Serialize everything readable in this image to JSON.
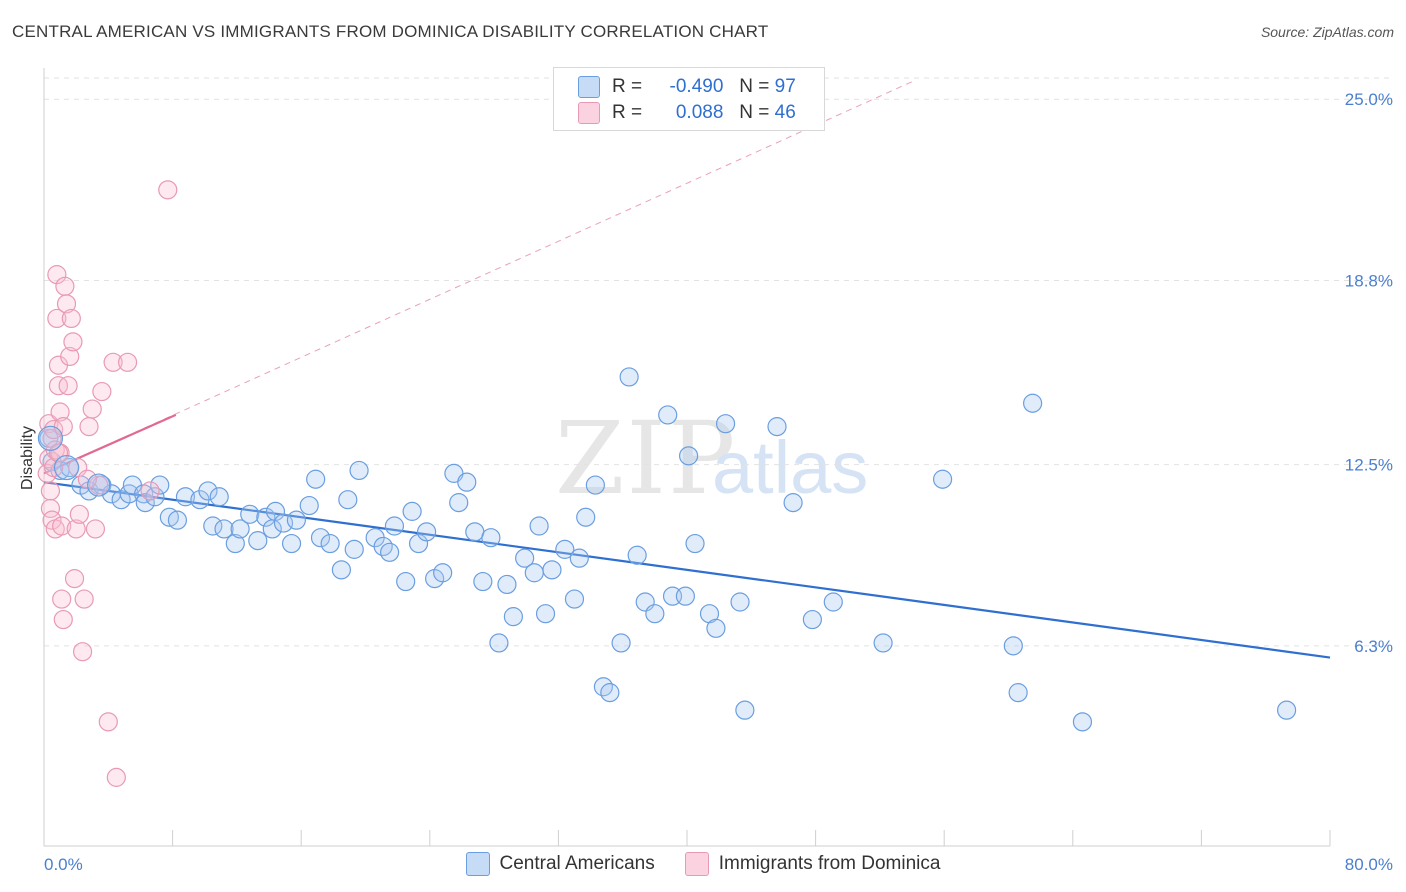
{
  "title": "CENTRAL AMERICAN VS IMMIGRANTS FROM DOMINICA DISABILITY CORRELATION CHART",
  "source": "Source: ZipAtlas.com",
  "watermark": {
    "zip": "ZIP",
    "atlas": "atlas"
  },
  "legend": {
    "rows": [
      {
        "r_label": "R =",
        "r_value": "-0.490",
        "n_label": "N =",
        "n_value": "97",
        "color": "#aac8f0",
        "border": "#6a9ee0"
      },
      {
        "r_label": "R =",
        "r_value": " 0.088",
        "n_label": "N =",
        "n_value": "46",
        "color": "#f8c0d2",
        "border": "#e89ab4"
      }
    ]
  },
  "bottom_legend": [
    {
      "label": "Central Americans",
      "color": "#aac8f0",
      "border": "#6a9ee0"
    },
    {
      "label": "Immigrants from Dominica",
      "color": "#f8c0d2",
      "border": "#e89ab4"
    }
  ],
  "chart_data": {
    "type": "scatter",
    "title": "CENTRAL AMERICAN VS IMMIGRANTS FROM DOMINICA DISABILITY CORRELATION CHART",
    "xlabel": "",
    "ylabel": "Disability",
    "xlim": [
      0,
      80
    ],
    "ylim": [
      0,
      26.0
    ],
    "x_tick_labels": [
      "0.0%",
      "80.0%"
    ],
    "y_ticks": [
      6.3,
      12.5,
      18.8,
      25.0
    ],
    "y_tick_labels": [
      "6.3%",
      "12.5%",
      "18.8%",
      "25.0%"
    ],
    "grid": true,
    "legend_position": "top-center",
    "series": [
      {
        "name": "Central Americans",
        "color": "#6a9ee0",
        "fill": "rgba(170,200,240,0.35)",
        "trend": {
          "x": [
            0,
            80
          ],
          "y": [
            11.9,
            5.9
          ],
          "color": "#2f6fd0"
        },
        "points": [
          [
            0.3,
            13.4
          ],
          [
            0.5,
            12.6
          ],
          [
            1.0,
            12.3
          ],
          [
            1.6,
            12.4
          ],
          [
            2.3,
            11.8
          ],
          [
            2.8,
            11.6
          ],
          [
            3.6,
            11.8
          ],
          [
            4.2,
            11.5
          ],
          [
            4.8,
            11.3
          ],
          [
            5.3,
            11.5
          ],
          [
            5.5,
            11.8
          ],
          [
            6.2,
            11.5
          ],
          [
            6.3,
            11.2
          ],
          [
            6.9,
            11.4
          ],
          [
            7.2,
            11.8
          ],
          [
            7.8,
            10.7
          ],
          [
            8.3,
            10.6
          ],
          [
            8.8,
            11.4
          ],
          [
            9.7,
            11.3
          ],
          [
            10.2,
            11.6
          ],
          [
            10.5,
            10.4
          ],
          [
            10.9,
            11.4
          ],
          [
            11.2,
            10.3
          ],
          [
            11.9,
            9.8
          ],
          [
            12.2,
            10.3
          ],
          [
            12.8,
            10.8
          ],
          [
            13.3,
            9.9
          ],
          [
            13.8,
            10.7
          ],
          [
            14.2,
            10.3
          ],
          [
            14.4,
            10.9
          ],
          [
            14.9,
            10.5
          ],
          [
            15.4,
            9.8
          ],
          [
            15.7,
            10.6
          ],
          [
            16.5,
            11.1
          ],
          [
            16.9,
            12.0
          ],
          [
            17.2,
            10.0
          ],
          [
            17.8,
            9.8
          ],
          [
            18.5,
            8.9
          ],
          [
            18.9,
            11.3
          ],
          [
            19.3,
            9.6
          ],
          [
            19.6,
            12.3
          ],
          [
            20.6,
            10.0
          ],
          [
            21.1,
            9.7
          ],
          [
            21.5,
            9.5
          ],
          [
            21.8,
            10.4
          ],
          [
            22.5,
            8.5
          ],
          [
            22.9,
            10.9
          ],
          [
            23.3,
            9.8
          ],
          [
            23.8,
            10.2
          ],
          [
            24.3,
            8.6
          ],
          [
            24.8,
            8.8
          ],
          [
            25.5,
            12.2
          ],
          [
            25.8,
            11.2
          ],
          [
            26.3,
            11.9
          ],
          [
            26.8,
            10.2
          ],
          [
            27.3,
            8.5
          ],
          [
            27.8,
            10.0
          ],
          [
            28.3,
            6.4
          ],
          [
            28.8,
            8.4
          ],
          [
            29.2,
            7.3
          ],
          [
            29.9,
            9.3
          ],
          [
            30.5,
            8.8
          ],
          [
            30.8,
            10.4
          ],
          [
            31.2,
            7.4
          ],
          [
            31.6,
            8.9
          ],
          [
            32.4,
            9.6
          ],
          [
            33.0,
            7.9
          ],
          [
            33.3,
            9.3
          ],
          [
            33.7,
            10.7
          ],
          [
            34.3,
            11.8
          ],
          [
            34.8,
            4.9
          ],
          [
            35.2,
            4.7
          ],
          [
            35.9,
            6.4
          ],
          [
            36.4,
            15.5
          ],
          [
            36.9,
            9.4
          ],
          [
            37.4,
            7.8
          ],
          [
            38.0,
            7.4
          ],
          [
            38.8,
            14.2
          ],
          [
            39.1,
            8.0
          ],
          [
            39.9,
            8.0
          ],
          [
            40.1,
            12.8
          ],
          [
            40.5,
            9.8
          ],
          [
            41.4,
            7.4
          ],
          [
            41.8,
            6.9
          ],
          [
            42.4,
            13.9
          ],
          [
            43.3,
            7.8
          ],
          [
            43.6,
            4.1
          ],
          [
            45.6,
            13.8
          ],
          [
            46.6,
            11.2
          ],
          [
            47.8,
            7.2
          ],
          [
            49.1,
            7.8
          ],
          [
            52.2,
            6.4
          ],
          [
            55.9,
            12.0
          ],
          [
            60.3,
            6.3
          ],
          [
            60.6,
            4.7
          ],
          [
            61.5,
            14.6
          ],
          [
            64.6,
            3.7
          ],
          [
            77.3,
            4.1
          ]
        ]
      },
      {
        "name": "Immigrants from Dominica",
        "color": "#e89ab4",
        "fill": "rgba(248,192,210,0.35)",
        "trend": {
          "x": [
            0,
            8.2
          ],
          "y": [
            12.2,
            14.2
          ],
          "color": "#e06a94"
        },
        "trend_extended": {
          "x": [
            0,
            54
          ],
          "y": [
            12.2,
            25.6
          ],
          "color": "#e8a0b8"
        },
        "points": [
          [
            0.2,
            12.2
          ],
          [
            0.3,
            13.9
          ],
          [
            0.3,
            12.7
          ],
          [
            0.4,
            11.6
          ],
          [
            0.4,
            11.0
          ],
          [
            0.5,
            13.4
          ],
          [
            0.5,
            10.6
          ],
          [
            0.6,
            13.7
          ],
          [
            0.6,
            12.4
          ],
          [
            0.7,
            13.0
          ],
          [
            0.7,
            10.3
          ],
          [
            0.8,
            19.0
          ],
          [
            0.8,
            17.5
          ],
          [
            0.9,
            15.9
          ],
          [
            0.9,
            15.2
          ],
          [
            1.0,
            14.3
          ],
          [
            1.0,
            12.9
          ],
          [
            1.1,
            10.4
          ],
          [
            1.1,
            7.9
          ],
          [
            1.2,
            7.2
          ],
          [
            1.2,
            13.8
          ],
          [
            1.3,
            18.6
          ],
          [
            1.4,
            18.0
          ],
          [
            1.5,
            15.2
          ],
          [
            1.6,
            16.2
          ],
          [
            1.7,
            17.5
          ],
          [
            1.8,
            16.7
          ],
          [
            1.9,
            8.6
          ],
          [
            2.0,
            10.3
          ],
          [
            2.1,
            12.4
          ],
          [
            2.2,
            10.8
          ],
          [
            2.4,
            6.1
          ],
          [
            2.5,
            7.9
          ],
          [
            2.8,
            13.8
          ],
          [
            3.0,
            14.4
          ],
          [
            3.2,
            10.3
          ],
          [
            3.6,
            15.0
          ],
          [
            4.0,
            3.7
          ],
          [
            4.3,
            16.0
          ],
          [
            4.5,
            1.8
          ],
          [
            5.2,
            16.0
          ],
          [
            6.6,
            11.6
          ],
          [
            7.7,
            21.9
          ],
          [
            3.4,
            11.8
          ],
          [
            2.7,
            12.0
          ],
          [
            0.9,
            12.9
          ]
        ]
      }
    ]
  }
}
